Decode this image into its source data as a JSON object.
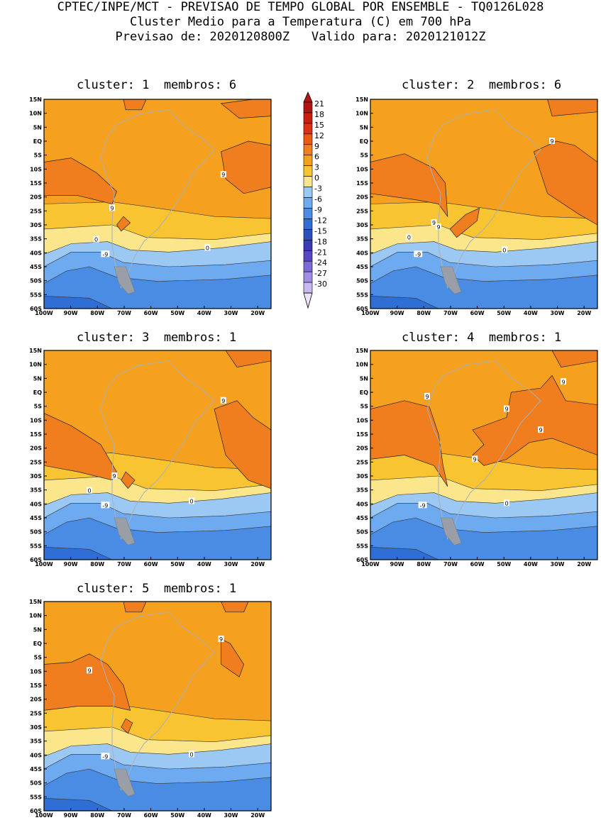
{
  "header": {
    "line1": "CPTEC/INPE/MCT - PREVISAO DE TEMPO GLOBAL POR ENSEMBLE - TQ0126L028",
    "line2": "Cluster Medio para a Temperatura (C) em 700 hPa",
    "line3": "Previsao de: 2020120800Z   Valido para: 2020121012Z"
  },
  "panels": [
    {
      "title": "cluster: 1  membros: 6",
      "labels": [
        "9",
        "9",
        "0",
        "0",
        "-9"
      ]
    },
    {
      "title": "cluster: 2  membros: 6",
      "labels": [
        "9",
        "9",
        "9",
        "0",
        "0",
        "-9"
      ]
    },
    {
      "title": "cluster: 3  membros: 1",
      "labels": [
        "9",
        "9",
        "0",
        "0",
        "-9"
      ]
    },
    {
      "title": "cluster: 4  membros: 1",
      "labels": [
        "9",
        "9",
        "9",
        "9",
        "9",
        "0",
        "-9"
      ]
    },
    {
      "title": "cluster: 5  membros: 1",
      "labels": [
        "9",
        "9",
        "0",
        "-9"
      ]
    }
  ],
  "axes": {
    "lat_ticks": [
      "15N",
      "10N",
      "5N",
      "EQ",
      "5S",
      "10S",
      "15S",
      "20S",
      "25S",
      "30S",
      "35S",
      "40S",
      "45S",
      "50S",
      "55S",
      "60S"
    ],
    "lon_ticks": [
      "100W",
      "90W",
      "80W",
      "70W",
      "60W",
      "50W",
      "40W",
      "30W",
      "20W"
    ]
  },
  "colorbar": {
    "levels": [
      "21",
      "18",
      "15",
      "12",
      "9",
      "6",
      "3",
      "0",
      "-3",
      "-6",
      "-9",
      "-12",
      "-15",
      "-18",
      "-21",
      "-24",
      "-27",
      "-30"
    ],
    "colors": [
      "#b01414",
      "#c82010",
      "#dc3214",
      "#ea5a12",
      "#f07d1e",
      "#f5a01e",
      "#f8c432",
      "#fbe68c",
      "#9cc8f4",
      "#6eaaf0",
      "#4a8ce4",
      "#2f6ed4",
      "#2c50bf",
      "#3c3ab4",
      "#5a46c8",
      "#7c6ad8",
      "#a08ee6",
      "#c8b8f2",
      "#ebe4fb"
    ]
  },
  "colors": {
    "land_outline": "#aab0b8",
    "contour": "#222222"
  }
}
